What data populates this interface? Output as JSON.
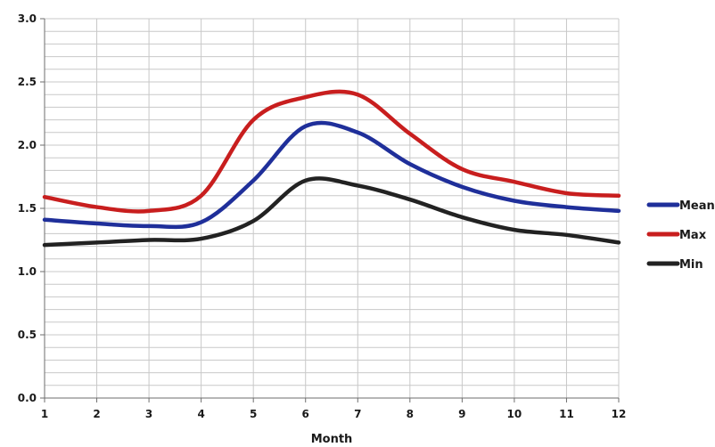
{
  "chart_data": {
    "type": "line",
    "title": "",
    "xlabel": "Month",
    "ylabel": "",
    "x": [
      1,
      2,
      3,
      4,
      5,
      6,
      7,
      8,
      9,
      10,
      11,
      12
    ],
    "xlim": [
      1,
      12
    ],
    "ylim": [
      0,
      3
    ],
    "x_ticks": [
      "1",
      "2",
      "3",
      "4",
      "5",
      "6",
      "7",
      "8",
      "9",
      "10",
      "11",
      "12"
    ],
    "y_ticks": [
      "0.0",
      "0.5",
      "1.0",
      "1.5",
      "2.0",
      "2.5",
      "3.0"
    ],
    "grid": true,
    "legend_position": "right",
    "series": [
      {
        "name": "Mean",
        "color": "#1f2f9a",
        "values": [
          1.41,
          1.38,
          1.36,
          1.39,
          1.72,
          2.15,
          2.1,
          1.85,
          1.67,
          1.56,
          1.51,
          1.48
        ]
      },
      {
        "name": "Max",
        "color": "#c81e1e",
        "values": [
          1.59,
          1.51,
          1.48,
          1.6,
          2.2,
          2.38,
          2.4,
          2.09,
          1.81,
          1.71,
          1.62,
          1.6
        ]
      },
      {
        "name": "Min",
        "color": "#222222",
        "values": [
          1.21,
          1.23,
          1.25,
          1.26,
          1.4,
          1.72,
          1.68,
          1.57,
          1.43,
          1.33,
          1.29,
          1.23
        ]
      }
    ]
  }
}
